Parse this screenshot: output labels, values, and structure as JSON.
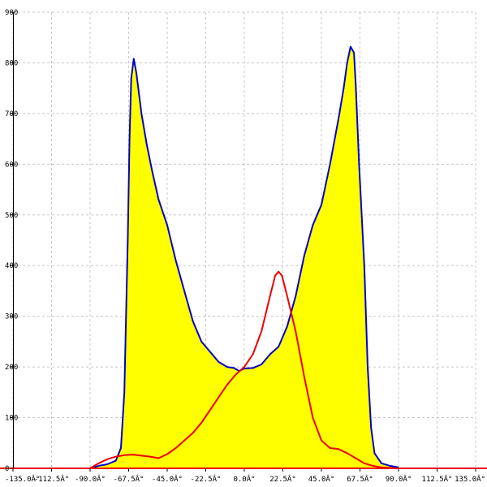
{
  "chart_data": {
    "type": "area",
    "title": "",
    "xlabel": "",
    "ylabel": "",
    "xlim": [
      -135,
      135
    ],
    "ylim": [
      0,
      900
    ],
    "grid": true,
    "x_ticks": [
      {
        "value": -135,
        "label": "-135.0Â°"
      },
      {
        "value": -112.5,
        "label": "-112.5Â°"
      },
      {
        "value": -90,
        "label": "-90.0Â°"
      },
      {
        "value": -67.5,
        "label": "-67.5Â°"
      },
      {
        "value": -45,
        "label": "-45.0Â°"
      },
      {
        "value": -22.5,
        "label": "-22.5Â°"
      },
      {
        "value": 0,
        "label": "0.0Â°"
      },
      {
        "value": 22.5,
        "label": "22.5Â°"
      },
      {
        "value": 45,
        "label": "45.0Â°"
      },
      {
        "value": 67.5,
        "label": "67.5Â°"
      },
      {
        "value": 90,
        "label": "90.0Â°"
      },
      {
        "value": 112.5,
        "label": "112.5Â°"
      },
      {
        "value": 135,
        "label": "135.0Â°"
      }
    ],
    "y_ticks": [
      {
        "value": 0,
        "label": "0"
      },
      {
        "value": 100,
        "label": "100"
      },
      {
        "value": 200,
        "label": "200"
      },
      {
        "value": 300,
        "label": "300"
      },
      {
        "value": 400,
        "label": "400"
      },
      {
        "value": 500,
        "label": "500"
      },
      {
        "value": 600,
        "label": "600"
      },
      {
        "value": 700,
        "label": "700"
      },
      {
        "value": 800,
        "label": "800"
      },
      {
        "value": 900,
        "label": "900"
      }
    ],
    "series": [
      {
        "fill": "#ffff00",
        "stroke": "#0000cc",
        "filled": true,
        "points": [
          [
            -90,
            0
          ],
          [
            -85,
            5
          ],
          [
            -80,
            8
          ],
          [
            -75,
            15
          ],
          [
            -72,
            40
          ],
          [
            -70,
            150
          ],
          [
            -68,
            450
          ],
          [
            -67,
            650
          ],
          [
            -66,
            770
          ],
          [
            -64.5,
            808
          ],
          [
            -63,
            780
          ],
          [
            -60,
            700
          ],
          [
            -57,
            640
          ],
          [
            -54,
            590
          ],
          [
            -50,
            530
          ],
          [
            -45,
            480
          ],
          [
            -40,
            410
          ],
          [
            -35,
            350
          ],
          [
            -30,
            290
          ],
          [
            -25,
            250
          ],
          [
            -20,
            230
          ],
          [
            -15,
            210
          ],
          [
            -10,
            200
          ],
          [
            -6,
            198
          ],
          [
            -3,
            192
          ],
          [
            0,
            197
          ],
          [
            5,
            198
          ],
          [
            10,
            205
          ],
          [
            15,
            225
          ],
          [
            20,
            240
          ],
          [
            25,
            280
          ],
          [
            30,
            340
          ],
          [
            35,
            420
          ],
          [
            40,
            480
          ],
          [
            45,
            520
          ],
          [
            50,
            600
          ],
          [
            55,
            690
          ],
          [
            58,
            750
          ],
          [
            60,
            800
          ],
          [
            62,
            832
          ],
          [
            64,
            820
          ],
          [
            65,
            760
          ],
          [
            67,
            600
          ],
          [
            70,
            400
          ],
          [
            72,
            200
          ],
          [
            74,
            80
          ],
          [
            76,
            30
          ],
          [
            80,
            10
          ],
          [
            85,
            5
          ],
          [
            90,
            2
          ]
        ]
      },
      {
        "stroke": "#ee0000",
        "filled": false,
        "points": [
          [
            -90,
            0
          ],
          [
            -85,
            10
          ],
          [
            -80,
            18
          ],
          [
            -75,
            23
          ],
          [
            -70,
            26
          ],
          [
            -65,
            27
          ],
          [
            -60,
            25
          ],
          [
            -55,
            23
          ],
          [
            -50,
            20
          ],
          [
            -45,
            28
          ],
          [
            -40,
            40
          ],
          [
            -35,
            55
          ],
          [
            -30,
            70
          ],
          [
            -25,
            90
          ],
          [
            -20,
            115
          ],
          [
            -15,
            140
          ],
          [
            -10,
            165
          ],
          [
            -5,
            185
          ],
          [
            0,
            200
          ],
          [
            5,
            225
          ],
          [
            10,
            270
          ],
          [
            15,
            340
          ],
          [
            18,
            380
          ],
          [
            20,
            388
          ],
          [
            22,
            380
          ],
          [
            25,
            340
          ],
          [
            30,
            270
          ],
          [
            35,
            180
          ],
          [
            40,
            100
          ],
          [
            45,
            55
          ],
          [
            50,
            40
          ],
          [
            55,
            38
          ],
          [
            60,
            30
          ],
          [
            65,
            20
          ],
          [
            70,
            10
          ],
          [
            75,
            5
          ],
          [
            80,
            2
          ],
          [
            90,
            0
          ]
        ]
      }
    ]
  }
}
